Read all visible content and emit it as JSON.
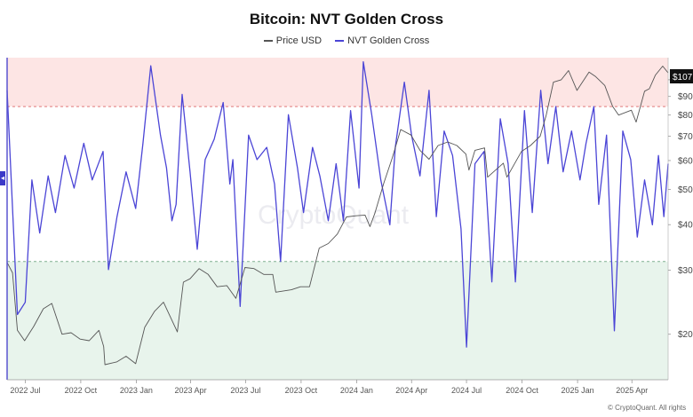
{
  "title": "Bitcoin: NVT Golden Cross",
  "legend": {
    "price": {
      "label": "Price USD",
      "color": "#555555"
    },
    "nvt": {
      "label": "NVT Golden Cross",
      "color": "#4b45d6"
    }
  },
  "watermark": "CryptoQuant",
  "credit": "© CryptoQuant. All rights reserved",
  "colors": {
    "upper_band": "#fde5e4",
    "lower_band": "#e8f4ec",
    "threshold_line": "#e07a7a"
  },
  "chart_data": {
    "type": "line",
    "title": "Bitcoin: NVT Golden Cross",
    "x_ticks": [
      "2022 Jul",
      "2022 Oct",
      "2023 Jan",
      "2023 Apr",
      "2023 Jul",
      "2023 Oct",
      "2024 Jan",
      "2024 Apr",
      "2024 Jul",
      "2024 Oct",
      "2025 Jan",
      "2025 Apr"
    ],
    "x_range": [
      "2022-06-01",
      "2025-05-31"
    ],
    "y_right": {
      "scale": "log",
      "range": [
        15000,
        115000
      ],
      "ticks": [
        "$10",
        "$90",
        "$80",
        "$70",
        "$60",
        "$50",
        "$40",
        "$30",
        "$20"
      ],
      "tick_values": [
        100000,
        90000,
        80000,
        70000,
        60000,
        50000,
        40000,
        30000,
        20000
      ],
      "current_label": "$107"
    },
    "bands": {
      "upper_threshold": 2.2,
      "lower_threshold": -1.6,
      "nvt_range": [
        -4.5,
        3.4
      ]
    },
    "series": [
      {
        "name": "Price USD",
        "axis": "right",
        "points": [
          [
            "2022-06-01",
            31500
          ],
          [
            "2022-06-10",
            29500
          ],
          [
            "2022-06-18",
            20500
          ],
          [
            "2022-06-30",
            19200
          ],
          [
            "2022-07-15",
            21000
          ],
          [
            "2022-07-31",
            23500
          ],
          [
            "2022-08-14",
            24300
          ],
          [
            "2022-08-31",
            20000
          ],
          [
            "2022-09-15",
            20200
          ],
          [
            "2022-09-30",
            19400
          ],
          [
            "2022-10-15",
            19200
          ],
          [
            "2022-10-31",
            20500
          ],
          [
            "2022-11-08",
            18500
          ],
          [
            "2022-11-10",
            16500
          ],
          [
            "2022-11-30",
            16800
          ],
          [
            "2022-12-15",
            17400
          ],
          [
            "2022-12-31",
            16600
          ],
          [
            "2023-01-15",
            20900
          ],
          [
            "2023-01-31",
            23100
          ],
          [
            "2023-02-15",
            24500
          ],
          [
            "2023-03-10",
            20300
          ],
          [
            "2023-03-20",
            27800
          ],
          [
            "2023-03-31",
            28400
          ],
          [
            "2023-04-15",
            30300
          ],
          [
            "2023-04-30",
            29200
          ],
          [
            "2023-05-15",
            27000
          ],
          [
            "2023-05-31",
            27200
          ],
          [
            "2023-06-15",
            25100
          ],
          [
            "2023-06-30",
            30500
          ],
          [
            "2023-07-15",
            30300
          ],
          [
            "2023-07-31",
            29200
          ],
          [
            "2023-08-15",
            29200
          ],
          [
            "2023-08-20",
            26100
          ],
          [
            "2023-09-15",
            26500
          ],
          [
            "2023-09-30",
            27000
          ],
          [
            "2023-10-15",
            27000
          ],
          [
            "2023-10-31",
            34500
          ],
          [
            "2023-11-15",
            35500
          ],
          [
            "2023-11-30",
            37700
          ],
          [
            "2023-12-15",
            42000
          ],
          [
            "2023-12-31",
            42300
          ],
          [
            "2024-01-15",
            42500
          ],
          [
            "2024-01-23",
            39500
          ],
          [
            "2024-01-31",
            42900
          ],
          [
            "2024-02-15",
            52000
          ],
          [
            "2024-02-29",
            61000
          ],
          [
            "2024-03-14",
            73000
          ],
          [
            "2024-03-31",
            70500
          ],
          [
            "2024-04-15",
            64000
          ],
          [
            "2024-04-30",
            60500
          ],
          [
            "2024-05-15",
            66000
          ],
          [
            "2024-05-31",
            67500
          ],
          [
            "2024-06-15",
            66000
          ],
          [
            "2024-06-30",
            62500
          ],
          [
            "2024-07-05",
            56500
          ],
          [
            "2024-07-15",
            64000
          ],
          [
            "2024-07-31",
            65000
          ],
          [
            "2024-08-05",
            54000
          ],
          [
            "2024-08-31",
            59000
          ],
          [
            "2024-09-06",
            54000
          ],
          [
            "2024-09-30",
            63500
          ],
          [
            "2024-10-15",
            66000
          ],
          [
            "2024-10-31",
            70000
          ],
          [
            "2024-11-10",
            80000
          ],
          [
            "2024-11-22",
            98500
          ],
          [
            "2024-12-05",
            100000
          ],
          [
            "2024-12-17",
            106000
          ],
          [
            "2024-12-31",
            93500
          ],
          [
            "2025-01-20",
            105000
          ],
          [
            "2025-01-31",
            102000
          ],
          [
            "2025-02-15",
            96500
          ],
          [
            "2025-02-28",
            84500
          ],
          [
            "2025-03-10",
            80000
          ],
          [
            "2025-03-31",
            82500
          ],
          [
            "2025-04-08",
            76500
          ],
          [
            "2025-04-22",
            93000
          ],
          [
            "2025-04-30",
            94500
          ],
          [
            "2025-05-10",
            103000
          ],
          [
            "2025-05-22",
            109000
          ],
          [
            "2025-05-31",
            104500
          ]
        ]
      },
      {
        "name": "NVT Golden Cross",
        "axis": "hidden",
        "points": [
          [
            "2022-06-01",
            2.6
          ],
          [
            "2022-06-18",
            -2.9
          ],
          [
            "2022-07-01",
            -2.6
          ],
          [
            "2022-07-12",
            0.4
          ],
          [
            "2022-07-25",
            -0.9
          ],
          [
            "2022-08-08",
            0.5
          ],
          [
            "2022-08-20",
            -0.4
          ],
          [
            "2022-09-05",
            1.0
          ],
          [
            "2022-09-20",
            0.2
          ],
          [
            "2022-10-06",
            1.3
          ],
          [
            "2022-10-20",
            0.4
          ],
          [
            "2022-11-07",
            1.1
          ],
          [
            "2022-11-16",
            -1.8
          ],
          [
            "2022-11-30",
            -0.5
          ],
          [
            "2022-12-15",
            0.6
          ],
          [
            "2022-12-31",
            -0.3
          ],
          [
            "2023-01-12",
            1.3
          ],
          [
            "2023-01-25",
            3.2
          ],
          [
            "2023-02-10",
            1.5
          ],
          [
            "2023-02-20",
            0.7
          ],
          [
            "2023-03-01",
            -0.6
          ],
          [
            "2023-03-08",
            -0.2
          ],
          [
            "2023-03-18",
            2.5
          ],
          [
            "2023-03-31",
            0.6
          ],
          [
            "2023-04-12",
            -1.3
          ],
          [
            "2023-04-25",
            0.9
          ],
          [
            "2023-05-10",
            1.4
          ],
          [
            "2023-05-25",
            2.3
          ],
          [
            "2023-06-05",
            0.3
          ],
          [
            "2023-06-10",
            0.9
          ],
          [
            "2023-06-22",
            -2.7
          ],
          [
            "2023-07-06",
            1.5
          ],
          [
            "2023-07-20",
            0.9
          ],
          [
            "2023-08-05",
            1.2
          ],
          [
            "2023-08-18",
            0.3
          ],
          [
            "2023-08-28",
            -1.6
          ],
          [
            "2023-09-10",
            2.0
          ],
          [
            "2023-09-25",
            0.7
          ],
          [
            "2023-10-05",
            -0.4
          ],
          [
            "2023-10-20",
            1.2
          ],
          [
            "2023-11-01",
            0.5
          ],
          [
            "2023-11-15",
            -0.6
          ],
          [
            "2023-11-28",
            0.8
          ],
          [
            "2023-12-10",
            -0.6
          ],
          [
            "2023-12-22",
            2.1
          ],
          [
            "2024-01-05",
            0.2
          ],
          [
            "2024-01-12",
            3.3
          ],
          [
            "2024-01-26",
            2.0
          ],
          [
            "2024-02-10",
            0.4
          ],
          [
            "2024-02-25",
            -0.7
          ],
          [
            "2024-03-05",
            1.2
          ],
          [
            "2024-03-20",
            2.8
          ],
          [
            "2024-04-01",
            1.5
          ],
          [
            "2024-04-15",
            0.5
          ],
          [
            "2024-04-30",
            2.6
          ],
          [
            "2024-05-12",
            -0.5
          ],
          [
            "2024-05-25",
            1.6
          ],
          [
            "2024-06-08",
            1.0
          ],
          [
            "2024-06-22",
            -0.8
          ],
          [
            "2024-07-01",
            -3.7
          ],
          [
            "2024-07-15",
            0.8
          ],
          [
            "2024-07-30",
            1.1
          ],
          [
            "2024-08-12",
            -2.1
          ],
          [
            "2024-08-26",
            1.9
          ],
          [
            "2024-09-08",
            0.8
          ],
          [
            "2024-09-20",
            -2.1
          ],
          [
            "2024-10-05",
            2.1
          ],
          [
            "2024-10-18",
            -0.4
          ],
          [
            "2024-11-01",
            2.6
          ],
          [
            "2024-11-13",
            0.8
          ],
          [
            "2024-11-26",
            2.2
          ],
          [
            "2024-12-08",
            0.6
          ],
          [
            "2024-12-22",
            1.6
          ],
          [
            "2025-01-05",
            0.4
          ],
          [
            "2025-01-15",
            1.3
          ],
          [
            "2025-01-28",
            2.2
          ],
          [
            "2025-02-05",
            -0.2
          ],
          [
            "2025-02-18",
            1.5
          ],
          [
            "2025-03-03",
            -3.3
          ],
          [
            "2025-03-17",
            1.6
          ],
          [
            "2025-03-30",
            0.9
          ],
          [
            "2025-04-10",
            -1.0
          ],
          [
            "2025-04-22",
            0.4
          ],
          [
            "2025-05-05",
            -0.7
          ],
          [
            "2025-05-15",
            1.0
          ],
          [
            "2025-05-24",
            -0.5
          ],
          [
            "2025-05-31",
            0.8
          ]
        ]
      }
    ]
  }
}
